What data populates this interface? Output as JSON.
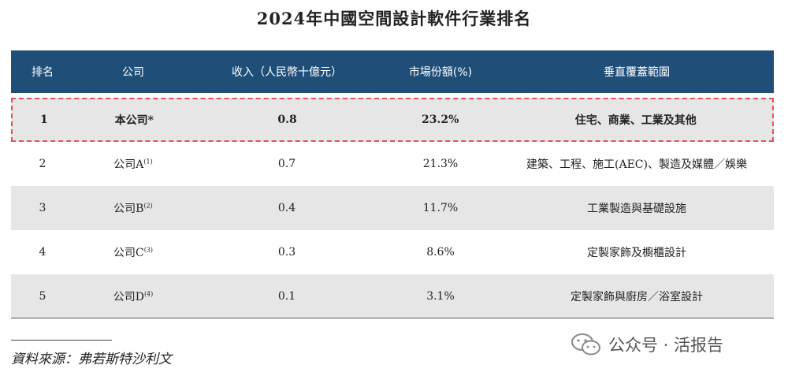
{
  "title": "2024年中國空間設計軟件行業排名",
  "chart_data": {
    "type": "table",
    "columns": [
      "排名",
      "公司",
      "收入（人民幣十億元）",
      "市場份額(%)",
      "垂直覆蓋範圍"
    ],
    "rows": [
      {
        "rank": "1",
        "company": "本公司*",
        "note": "",
        "revenue": "0.8",
        "share": "23.2%",
        "coverage": "住宅、商業、工業及其他"
      },
      {
        "rank": "2",
        "company": "公司A",
        "note": "(1)",
        "revenue": "0.7",
        "share": "21.3%",
        "coverage": "建築、工程、施工(AEC)、製造及媒體／娛樂"
      },
      {
        "rank": "3",
        "company": "公司B",
        "note": "(2)",
        "revenue": "0.4",
        "share": "11.7%",
        "coverage": "工業製造與基礎設施"
      },
      {
        "rank": "4",
        "company": "公司C",
        "note": "(3)",
        "revenue": "0.3",
        "share": "8.6%",
        "coverage": "定製家飾及櫥櫃設計"
      },
      {
        "rank": "5",
        "company": "公司D",
        "note": "(4)",
        "revenue": "0.1",
        "share": "3.1%",
        "coverage": "定製家飾與廚房／浴室設計"
      }
    ]
  },
  "source": "資料來源：弗若斯特沙利文",
  "watermark": {
    "text": "公众号 · 活报告",
    "icon": "wechat-icon"
  },
  "colors": {
    "header_bg": "#1f4e79",
    "row_shade": "#e6e6e6",
    "highlight_border": "#e05555"
  }
}
